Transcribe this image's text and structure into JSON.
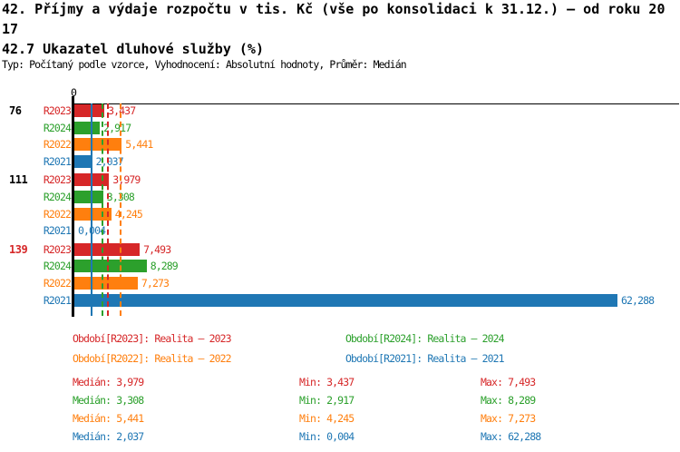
{
  "header": {
    "title_line1": "42. Příjmy a výdaje rozpočtu v tis. Kč (vše po konsolidaci k 31.12.) – od roku 20",
    "title_line2": "17",
    "subtitle": "42.7 Ukazatel dluhové služby (%)",
    "meta": "Typ: Počítaný podle vzorce, Vyhodnocení: Absolutní hodnoty, Průměr: Medián"
  },
  "colors": {
    "r2023": "#d62728",
    "r2024": "#2ca02c",
    "r2022": "#ff7f0e",
    "r2021": "#1f77b4",
    "axis": "#000000",
    "highlight_group_label": "#d62728"
  },
  "chart_data": {
    "type": "bar",
    "orientation": "horizontal",
    "title": "42.7 Ukazatel dluhové služby (%)",
    "unit": "%",
    "x_axis": {
      "zero_label": "0",
      "min": 0,
      "grid": false,
      "max_value_shown": 62.288
    },
    "average_type": "Medián",
    "series": [
      {
        "name": "R2023",
        "color": "#d62728",
        "line_style": "dashed",
        "legend_label": "Období[R2023]: Realita – 2023",
        "median": 3.979,
        "min": 3.437,
        "max": 7.493,
        "median_text": "Medián: 3,979",
        "min_text": "Min: 3,437",
        "max_text": "Max: 7,493"
      },
      {
        "name": "R2024",
        "color": "#2ca02c",
        "line_style": "dashed",
        "legend_label": "Období[R2024]: Realita – 2024",
        "median": 3.308,
        "min": 2.917,
        "max": 8.289,
        "median_text": "Medián: 3,308",
        "min_text": "Min: 2,917",
        "max_text": "Max: 8,289"
      },
      {
        "name": "R2022",
        "color": "#ff7f0e",
        "line_style": "dashed",
        "legend_label": "Období[R2022]: Realita – 2022",
        "median": 5.441,
        "min": 4.245,
        "max": 7.273,
        "median_text": "Medián: 5,441",
        "min_text": "Min: 4,245",
        "max_text": "Max: 7,273"
      },
      {
        "name": "R2021",
        "color": "#1f77b4",
        "line_style": "solid",
        "legend_label": "Období[R2021]: Realita – 2021",
        "median": 2.037,
        "min": 0.004,
        "max": 62.288,
        "median_text": "Medián: 2,037",
        "min_text": "Min: 0,004",
        "max_text": "Max: 62,288"
      }
    ],
    "groups": [
      {
        "label": "76",
        "label_color": "#000000",
        "values": {
          "R2023": 3.437,
          "R2024": 2.917,
          "R2022": 5.441,
          "R2021": 2.037
        },
        "value_labels": {
          "R2023": "3,437",
          "R2024": "2,917",
          "R2022": "5,441",
          "R2021": "2,037"
        }
      },
      {
        "label": "111",
        "label_color": "#000000",
        "values": {
          "R2023": 3.979,
          "R2024": 3.308,
          "R2022": 4.245,
          "R2021": 0.004
        },
        "value_labels": {
          "R2023": "3,979",
          "R2024": "3,308",
          "R2022": "4,245",
          "R2021": "0,004"
        }
      },
      {
        "label": "139",
        "label_color": "#d62728",
        "values": {
          "R2023": 7.493,
          "R2024": 8.289,
          "R2022": 7.273,
          "R2021": 62.288
        },
        "value_labels": {
          "R2023": "7,493",
          "R2024": "8,289",
          "R2022": "7,273",
          "R2021": "62,288"
        }
      }
    ]
  }
}
